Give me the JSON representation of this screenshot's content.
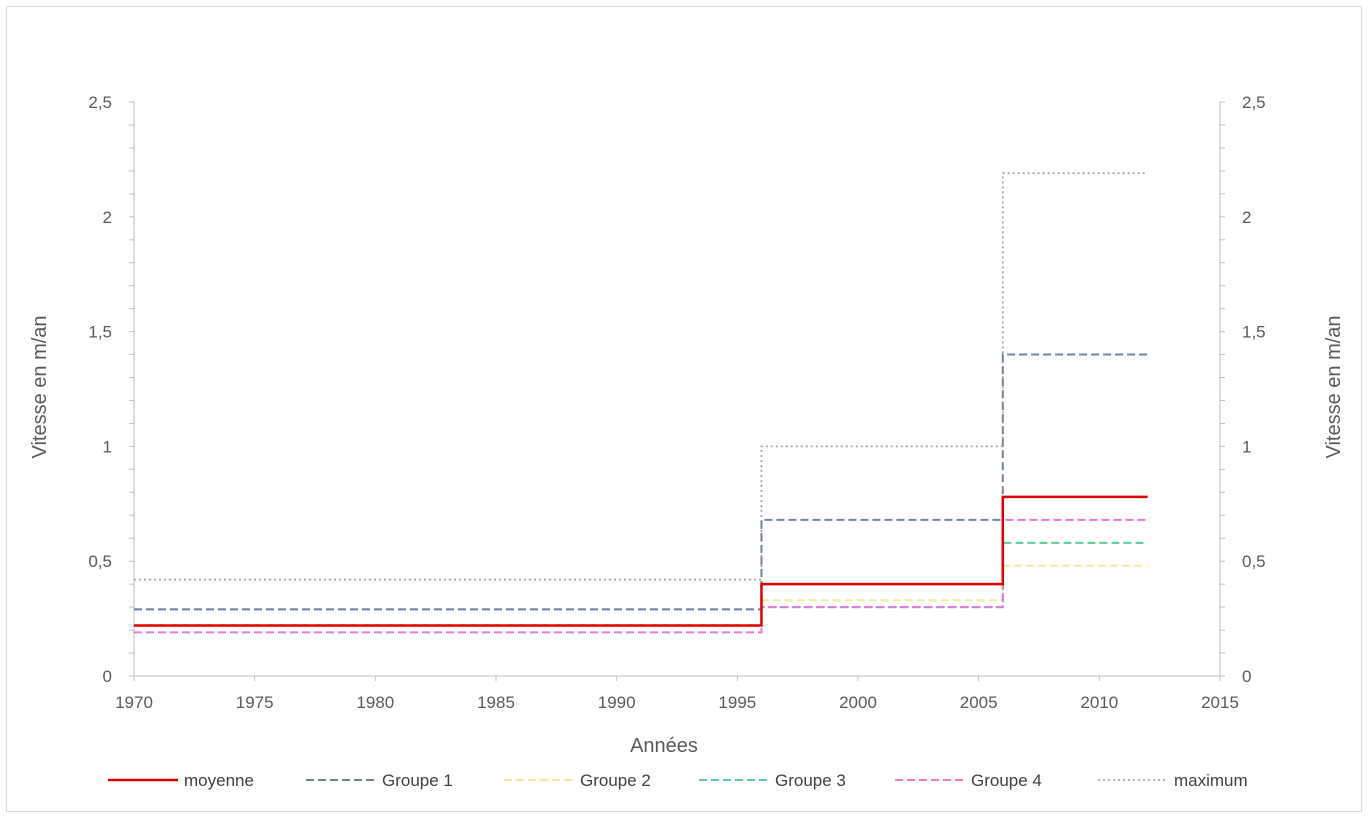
{
  "chart_data": {
    "type": "line",
    "step": true,
    "xlabel": "Années",
    "ylabel_left": "Vitesse en m/an",
    "ylabel_right": "Vitesse en m/an",
    "xlim": [
      1970,
      2015
    ],
    "x_ticks": [
      1970,
      1975,
      1980,
      1985,
      1990,
      1995,
      2000,
      2005,
      2010,
      2015
    ],
    "x_tick_labels": [
      "1970",
      "1975",
      "1980",
      "1985",
      "1990",
      "1995",
      "2000",
      "2005",
      "2010",
      "2015"
    ],
    "ylim": [
      0,
      2.5
    ],
    "y_ticks": [
      0,
      0.5,
      1,
      1.5,
      2,
      2.5
    ],
    "y_tick_labels": [
      "0",
      "0,5",
      "1",
      "1,5",
      "2",
      "2,5"
    ],
    "y_minor_step": 0.1,
    "legend_position": "bottom",
    "grid": false,
    "x": [
      1970,
      1996,
      2006,
      2012
    ],
    "series": [
      {
        "name": "moyenne",
        "color": "#e00000",
        "dash": "solid",
        "values": [
          0.22,
          0.4,
          0.78,
          0.78
        ]
      },
      {
        "name": "Groupe 1",
        "color": "#7381a6",
        "dash": "dashed",
        "values": [
          0.29,
          0.68,
          1.4,
          1.4
        ]
      },
      {
        "name": "Groupe 2",
        "color": "#f8e6a0",
        "dash": "dashed",
        "values": [
          0.29,
          0.33,
          0.48,
          0.48
        ]
      },
      {
        "name": "Groupe 3",
        "color": "#5fc99a",
        "dash": "dashed",
        "values": [
          0.29,
          0.3,
          0.58,
          0.58
        ]
      },
      {
        "name": "Groupe 4",
        "color": "#e878d8",
        "dash": "dashed",
        "values": [
          0.19,
          0.3,
          0.68,
          0.68
        ]
      },
      {
        "name": "maximum",
        "color": "#a6a6a6",
        "dash": "dotted",
        "values": [
          0.42,
          1.0,
          2.19,
          2.19
        ]
      }
    ]
  }
}
